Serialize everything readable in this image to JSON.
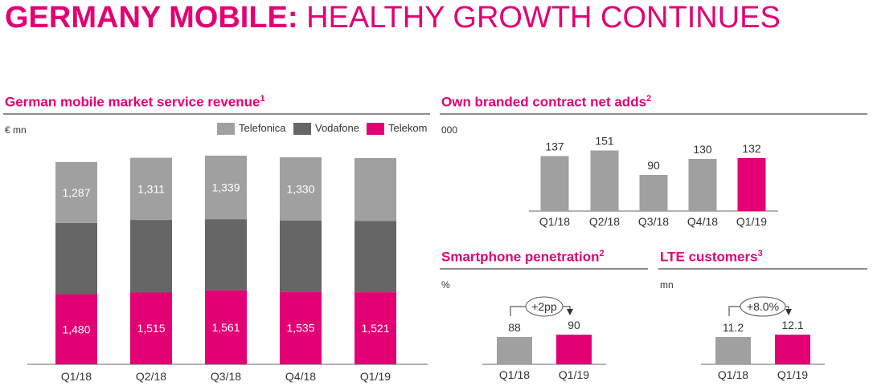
{
  "title": {
    "bold": "GERMANY MOBILE:",
    "light": "HEALTHY GROWTH CONTINUES"
  },
  "colors": {
    "accent": "#e20074",
    "telefonica": "#a0a0a0",
    "vodafone": "#666666",
    "telekom": "#e20074",
    "bar_grey": "#a0a0a0"
  },
  "panels": {
    "revenue": {
      "title": "German mobile market service revenue",
      "sup": "1",
      "unit": "€ mn"
    },
    "net_adds": {
      "title": "Own branded contract net adds",
      "sup": "2",
      "unit": "000"
    },
    "smartphone": {
      "title": "Smartphone penetration",
      "sup": "2",
      "unit": "%",
      "annotation": "+2pp"
    },
    "lte": {
      "title": "LTE customers",
      "sup": "3",
      "unit": "mn",
      "annotation": "+8.0%"
    }
  },
  "legend": [
    {
      "label": "Telefonica",
      "color": "#a0a0a0"
    },
    {
      "label": "Vodafone",
      "color": "#666666"
    },
    {
      "label": "Telekom",
      "color": "#e20074"
    }
  ],
  "chart_data": [
    {
      "type": "bar",
      "stacked": true,
      "categories": [
        "Q1/18",
        "Q2/18",
        "Q3/18",
        "Q4/18",
        "Q1/19"
      ],
      "series": [
        {
          "name": "Telekom",
          "values": [
            1480,
            1515,
            1561,
            1535,
            1521
          ],
          "labels": [
            "1,480",
            "1,515",
            "1,561",
            "1,535",
            "1,521"
          ]
        },
        {
          "name": "Vodafone",
          "values": [
            1500,
            1530,
            1500,
            1500,
            1500
          ],
          "labels": [
            "",
            "",
            "",
            "",
            ""
          ]
        },
        {
          "name": "Telefonica",
          "values": [
            1287,
            1311,
            1339,
            1330,
            1330
          ],
          "labels": [
            "1,287",
            "1,311",
            "1,339",
            "1,330",
            ""
          ]
        }
      ],
      "ylim": [
        0,
        4400
      ]
    },
    {
      "type": "bar",
      "categories": [
        "Q1/18",
        "Q2/18",
        "Q3/18",
        "Q4/18",
        "Q1/19"
      ],
      "values": [
        137,
        151,
        90,
        130,
        132
      ],
      "highlight_index": 4,
      "ylim": [
        0,
        170
      ]
    },
    {
      "type": "bar",
      "categories": [
        "Q1/18",
        "Q1/19"
      ],
      "values": [
        88,
        90
      ],
      "highlight_index": 1
    },
    {
      "type": "bar",
      "categories": [
        "Q1/18",
        "Q1/19"
      ],
      "values": [
        11.2,
        12.1
      ],
      "labels": [
        "11.2",
        "12.1"
      ],
      "highlight_index": 1
    }
  ]
}
